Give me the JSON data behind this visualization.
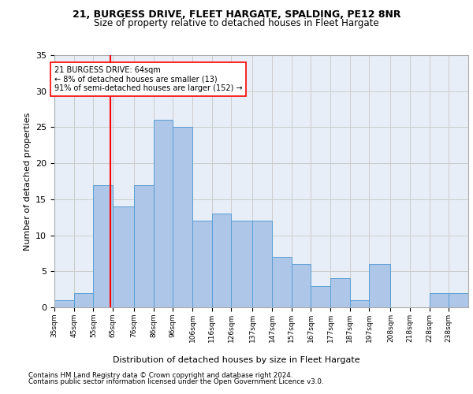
{
  "title1": "21, BURGESS DRIVE, FLEET HARGATE, SPALDING, PE12 8NR",
  "title2": "Size of property relative to detached houses in Fleet Hargate",
  "xlabel": "Distribution of detached houses by size in Fleet Hargate",
  "ylabel": "Number of detached properties",
  "bin_labels": [
    "35sqm",
    "45sqm",
    "55sqm",
    "65sqm",
    "76sqm",
    "86sqm",
    "96sqm",
    "106sqm",
    "116sqm",
    "126sqm",
    "137sqm",
    "147sqm",
    "157sqm",
    "167sqm",
    "177sqm",
    "187sqm",
    "197sqm",
    "208sqm",
    "218sqm",
    "228sqm",
    "238sqm"
  ],
  "bin_edges": [
    35,
    45,
    55,
    65,
    76,
    86,
    96,
    106,
    116,
    126,
    137,
    147,
    157,
    167,
    177,
    187,
    197,
    208,
    218,
    228,
    238,
    248
  ],
  "values": [
    1,
    2,
    17,
    14,
    17,
    26,
    25,
    12,
    13,
    12,
    12,
    7,
    6,
    3,
    4,
    1,
    6,
    0,
    0,
    2,
    2
  ],
  "bar_color": "#aec6e8",
  "bar_edge_color": "#5a9fd4",
  "ref_line_x": 64,
  "ref_line_color": "red",
  "annotation_text": "21 BURGESS DRIVE: 64sqm\n← 8% of detached houses are smaller (13)\n91% of semi-detached houses are larger (152) →",
  "annotation_box_color": "white",
  "annotation_box_edge_color": "red",
  "ylim": [
    0,
    35
  ],
  "yticks": [
    0,
    5,
    10,
    15,
    20,
    25,
    30,
    35
  ],
  "footer1": "Contains HM Land Registry data © Crown copyright and database right 2024.",
  "footer2": "Contains public sector information licensed under the Open Government Licence v3.0.",
  "background_color": "#e8eef8",
  "grid_color": "#cccccc"
}
